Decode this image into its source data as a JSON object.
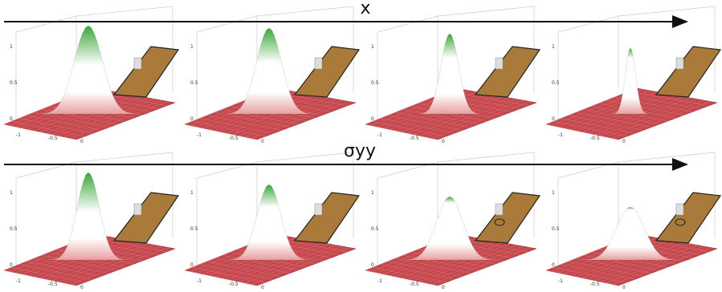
{
  "rows": [
    {
      "label": "x"
    },
    {
      "label": "σyy"
    }
  ],
  "axes": {
    "x_ticks": [
      "-1",
      "-0.5",
      "0"
    ],
    "z_ticks": [
      "0",
      "0.5",
      "1"
    ]
  }
}
